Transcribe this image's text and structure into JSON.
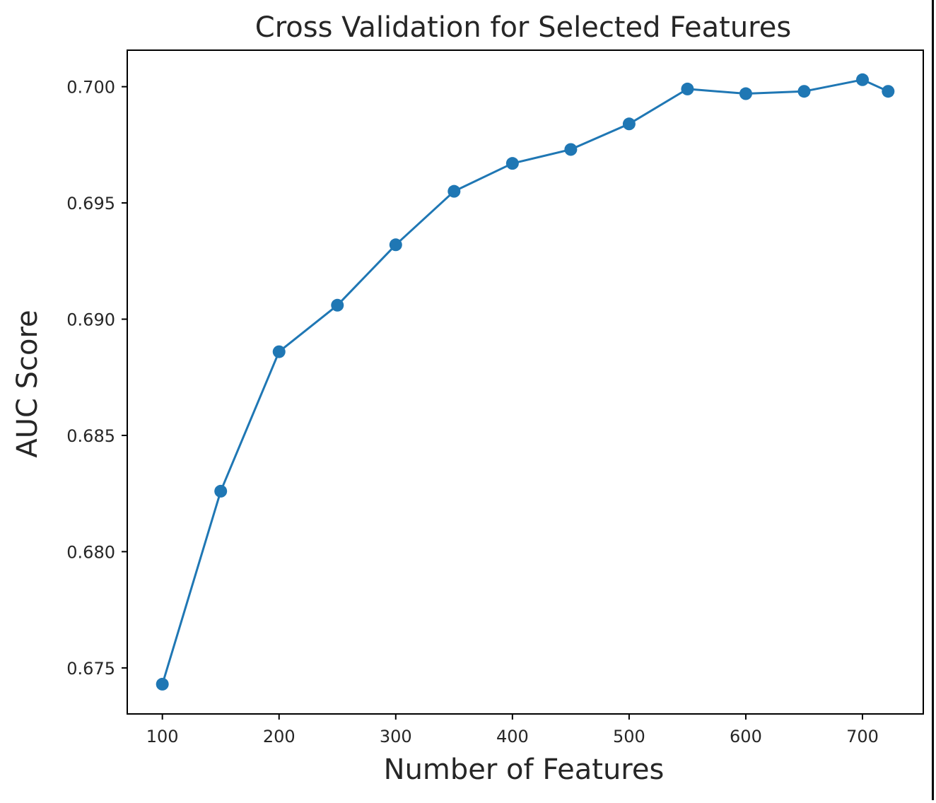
{
  "chart_data": {
    "type": "line",
    "title": "Cross Validation for Selected Features",
    "xlabel": "Number of Features",
    "ylabel": "AUC Score",
    "x": [
      100,
      150,
      200,
      250,
      300,
      350,
      400,
      450,
      500,
      550,
      600,
      650,
      700,
      722
    ],
    "series": [
      {
        "values": [
          0.6743,
          0.6826,
          0.6886,
          0.6906,
          0.6932,
          0.6955,
          0.6967,
          0.6973,
          0.6984,
          0.6999,
          0.6997,
          0.6998,
          0.7003,
          0.6998
        ],
        "color": "#1f77b4",
        "marker": "circle"
      }
    ],
    "xticks": [
      100,
      200,
      300,
      400,
      500,
      600,
      700
    ],
    "xtick_labels": [
      "100",
      "200",
      "300",
      "400",
      "500",
      "600",
      "700"
    ],
    "yticks": [
      0.675,
      0.68,
      0.685,
      0.69,
      0.695,
      0.7
    ],
    "ytick_labels": [
      "0.675",
      "0.680",
      "0.685",
      "0.690",
      "0.695",
      "0.700"
    ],
    "xlim": [
      69.9,
      752.1
    ],
    "ylim": [
      0.67302,
      0.70157
    ],
    "grid": false,
    "legend": "none"
  }
}
